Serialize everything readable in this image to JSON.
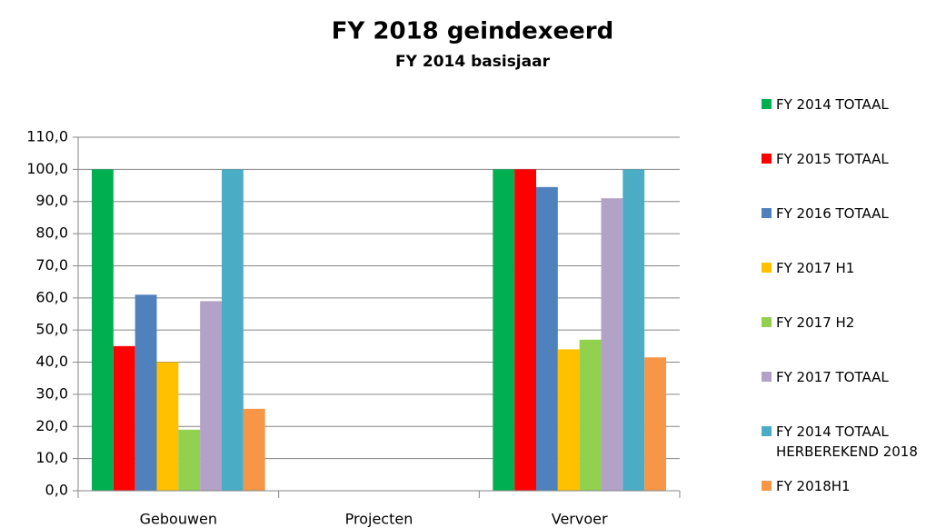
{
  "chart_data": {
    "type": "bar",
    "title": "FY 2018 geindexeerd",
    "subtitle": "FY 2014  basisjaar",
    "categories": [
      "Gebouwen",
      "Projecten",
      "Vervoer"
    ],
    "series": [
      {
        "name": "FY 2014 TOTAAL",
        "color": "#00b050",
        "values": [
          100,
          0,
          100
        ]
      },
      {
        "name": "FY 2015 TOTAAL",
        "color": "#ff0000",
        "values": [
          45,
          0,
          100
        ]
      },
      {
        "name": "FY 2016 TOTAAL",
        "color": "#4f81bd",
        "values": [
          61,
          0,
          94.5
        ]
      },
      {
        "name": "FY 2017 H1",
        "color": "#ffc000",
        "values": [
          40,
          0,
          44
        ]
      },
      {
        "name": "FY 2017 H2",
        "color": "#92d050",
        "values": [
          19,
          0,
          47
        ]
      },
      {
        "name": "FY 2017 TOTAAL",
        "color": "#b3a2c7",
        "values": [
          59,
          0,
          91
        ]
      },
      {
        "name": "FY 2014 TOTAAL HERBEREKEND 2018",
        "color": "#4bacc6",
        "values": [
          100,
          0,
          100
        ]
      },
      {
        "name": "FY 2018H1",
        "color": "#f79646",
        "values": [
          25.5,
          0,
          41.5
        ]
      }
    ],
    "ylim": [
      0,
      110
    ],
    "yticks": [
      {
        "value": 0,
        "label": "0,0"
      },
      {
        "value": 10,
        "label": "10,0"
      },
      {
        "value": 20,
        "label": "20,0"
      },
      {
        "value": 30,
        "label": "30,0"
      },
      {
        "value": 40,
        "label": "40,0"
      },
      {
        "value": 50,
        "label": "50,0"
      },
      {
        "value": 60,
        "label": "60,0"
      },
      {
        "value": 70,
        "label": "70,0"
      },
      {
        "value": 80,
        "label": "80,0"
      },
      {
        "value": 90,
        "label": "90,0"
      },
      {
        "value": 100,
        "label": "100,0"
      },
      {
        "value": 110,
        "label": "110,0"
      }
    ],
    "grid": true,
    "legend": "right"
  }
}
